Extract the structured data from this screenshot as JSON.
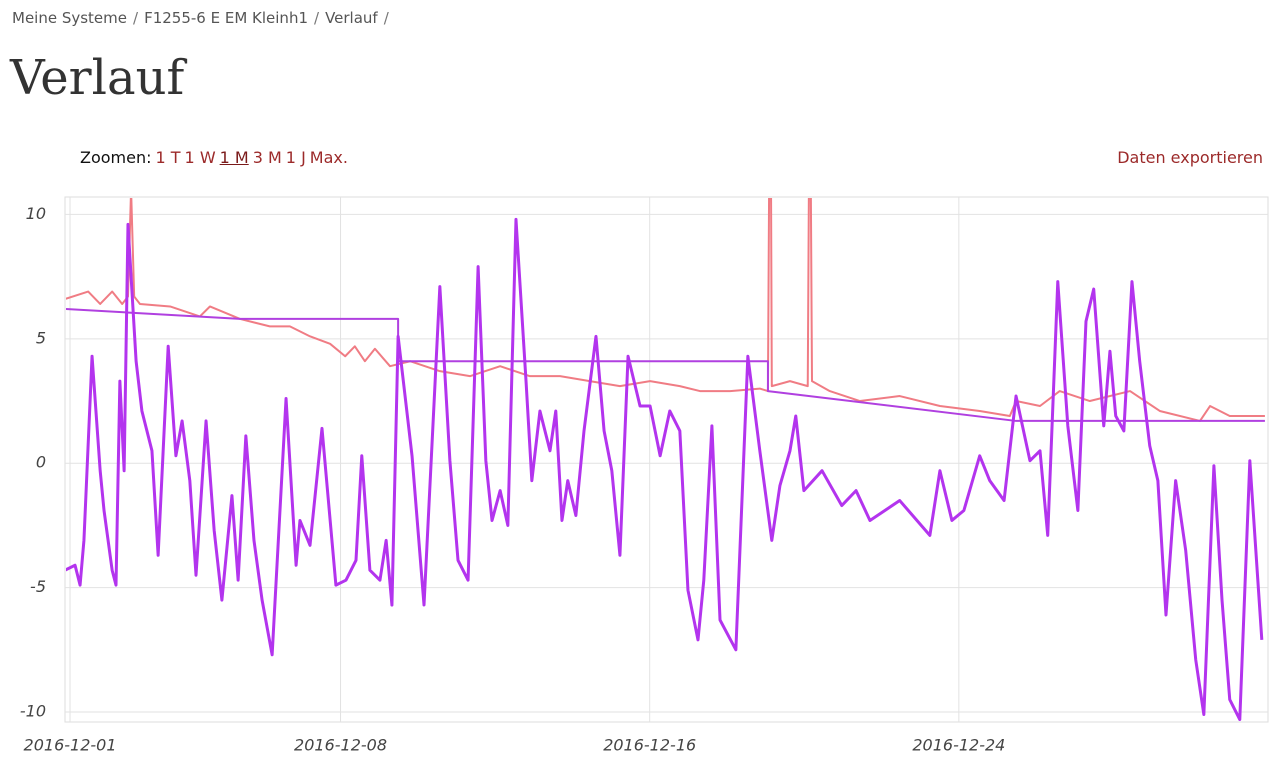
{
  "breadcrumb": {
    "items": [
      "Meine Systeme",
      "F1255-6 E EM Kleinh1",
      "Verlauf"
    ],
    "separator": "/"
  },
  "header": {
    "title": "Verlauf"
  },
  "toolbar": {
    "zoom_label": "Zoomen:",
    "zoom_options": [
      "1 T",
      "1 W",
      "1 M",
      "3 M",
      "1 J",
      "Max."
    ],
    "active_zoom": 2,
    "export": "Daten exportieren"
  },
  "chart_data": {
    "type": "line",
    "xlim": [
      -0.13,
      31
    ],
    "xticks": [
      {
        "value": 0,
        "label": "2016-12-01"
      },
      {
        "value": 7,
        "label": "2016-12-08"
      },
      {
        "value": 15,
        "label": "2016-12-16"
      },
      {
        "value": 23,
        "label": "2016-12-24"
      }
    ],
    "ylim": [
      -10.4,
      10.7
    ],
    "yticks": [
      -10,
      -5,
      0,
      5,
      10
    ],
    "grid": true,
    "series": [
      {
        "color": "#f07c84",
        "width": 2,
        "x": [
          -0.13,
          0.47,
          0.78,
          1.09,
          1.35,
          1.5,
          1.58,
          1.66,
          1.81,
          2.59,
          3.36,
          3.62,
          4.4,
          5.17,
          5.69,
          6.21,
          6.73,
          7.12,
          7.37,
          7.63,
          7.89,
          8.28,
          8.8,
          9.57,
          10.35,
          11.13,
          11.9,
          12.68,
          13.45,
          14.23,
          15.01,
          15.78,
          16.3,
          17.08,
          17.85,
          18.06,
          18.09,
          18.14,
          18.16,
          18.63,
          19.09,
          19.12,
          19.17,
          19.2,
          19.66,
          20.44,
          21.47,
          22.51,
          23.54,
          24.32,
          24.48,
          25.1,
          25.61,
          26.39,
          27.43,
          28.2,
          29.24,
          29.5,
          30.01,
          30.92
        ],
        "values": [
          6.6,
          6.9,
          6.4,
          6.9,
          6.4,
          6.7,
          11,
          6.7,
          6.4,
          6.3,
          5.9,
          6.3,
          5.8,
          5.5,
          5.5,
          5.1,
          4.8,
          4.3,
          4.7,
          4.1,
          4.6,
          3.9,
          4.1,
          3.7,
          3.5,
          3.9,
          3.5,
          3.5,
          3.3,
          3.1,
          3.3,
          3.1,
          2.9,
          2.9,
          3.0,
          2.9,
          11,
          11,
          3.1,
          3.3,
          3.1,
          11,
          11,
          3.3,
          2.9,
          2.5,
          2.7,
          2.3,
          2.1,
          1.9,
          2.5,
          2.3,
          2.9,
          2.5,
          2.9,
          2.1,
          1.7,
          2.3,
          1.9,
          1.9
        ]
      },
      {
        "color": "#b040e0",
        "width": 2,
        "x": [
          -0.13,
          4.4,
          8.49,
          8.49,
          18.06,
          18.06,
          24.48,
          30.92
        ],
        "values": [
          6.2,
          5.8,
          5.8,
          4.1,
          4.1,
          2.9,
          1.7,
          1.7
        ]
      },
      {
        "color": "#b334ee",
        "width": 3,
        "x": [
          -0.13,
          0.13,
          0.26,
          0.36,
          0.57,
          0.78,
          0.88,
          1.09,
          1.19,
          1.29,
          1.4,
          1.5,
          1.71,
          1.86,
          2.12,
          2.28,
          2.54,
          2.74,
          2.9,
          3.1,
          3.26,
          3.52,
          3.73,
          3.93,
          4.19,
          4.35,
          4.55,
          4.76,
          4.97,
          5.23,
          5.59,
          5.85,
          5.95,
          6.21,
          6.52,
          6.88,
          7.14,
          7.4,
          7.55,
          7.76,
          8.02,
          8.18,
          8.33,
          8.49,
          8.85,
          9.16,
          9.57,
          9.83,
          10.04,
          10.3,
          10.56,
          10.76,
          10.92,
          11.13,
          11.33,
          11.54,
          11.8,
          11.95,
          12.16,
          12.42,
          12.57,
          12.73,
          12.88,
          13.09,
          13.3,
          13.61,
          13.82,
          14.02,
          14.23,
          14.44,
          14.75,
          15.01,
          15.27,
          15.52,
          15.78,
          15.99,
          16.25,
          16.4,
          16.61,
          16.82,
          17.23,
          17.54,
          17.85,
          18.16,
          18.37,
          18.63,
          18.78,
          18.99,
          19.46,
          19.97,
          20.34,
          20.7,
          21.47,
          22.25,
          22.51,
          22.82,
          23.13,
          23.54,
          23.8,
          24.17,
          24.48,
          24.84,
          25.1,
          25.3,
          25.56,
          25.82,
          26.08,
          26.29,
          26.49,
          26.75,
          26.91,
          27.06,
          27.27,
          27.48,
          27.68,
          27.94,
          28.15,
          28.36,
          28.61,
          28.87,
          29.13,
          29.34,
          29.6,
          29.81,
          30.01,
          30.27,
          30.53,
          30.84
        ],
        "values": [
          -4.3,
          -4.1,
          -4.9,
          -3.1,
          4.3,
          -0.3,
          -1.9,
          -4.3,
          -4.9,
          3.3,
          -0.3,
          9.6,
          4.1,
          2.1,
          0.5,
          -3.7,
          4.7,
          0.3,
          1.7,
          -0.7,
          -4.5,
          1.7,
          -2.7,
          -5.5,
          -1.3,
          -4.7,
          1.1,
          -3.1,
          -5.5,
          -7.7,
          2.6,
          -4.1,
          -2.3,
          -3.3,
          1.4,
          -4.9,
          -4.7,
          -3.9,
          0.3,
          -4.3,
          -4.7,
          -3.1,
          -5.7,
          5.1,
          0.3,
          -5.7,
          7.1,
          0.1,
          -3.9,
          -4.7,
          7.9,
          0.1,
          -2.3,
          -1.1,
          -2.5,
          9.8,
          3.3,
          -0.7,
          2.1,
          0.5,
          2.1,
          -2.3,
          -0.7,
          -2.1,
          1.3,
          5.1,
          1.3,
          -0.3,
          -3.7,
          4.3,
          2.3,
          2.3,
          0.3,
          2.1,
          1.3,
          -5.1,
          -7.1,
          -4.7,
          1.5,
          -6.3,
          -7.5,
          4.3,
          0.5,
          -3.1,
          -0.9,
          0.5,
          1.9,
          -1.1,
          -0.3,
          -1.7,
          -1.1,
          -2.3,
          -1.5,
          -2.9,
          -0.3,
          -2.3,
          -1.9,
          0.3,
          -0.7,
          -1.5,
          2.7,
          0.1,
          0.5,
          -2.9,
          7.3,
          1.5,
          -1.9,
          5.7,
          7.0,
          1.5,
          4.5,
          1.9,
          1.3,
          7.3,
          4.1,
          0.7,
          -0.7,
          -6.1,
          -0.7,
          -3.5,
          -7.9,
          -10.1,
          -0.1,
          -5.5,
          -9.5,
          -10.3,
          0.1,
          -7.1
        ]
      }
    ]
  }
}
